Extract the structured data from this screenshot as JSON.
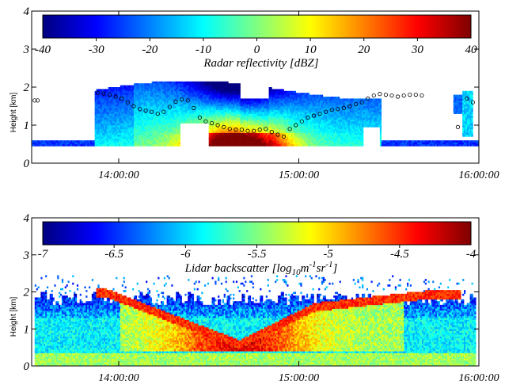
{
  "chart_data": [
    {
      "type": "heatmap",
      "title": "",
      "xlabel": "",
      "ylabel": "Height [km]",
      "xticks": [
        "14:00:00",
        "15:00:00",
        "16:00:00"
      ],
      "xlim": [
        "13:31:00",
        "16:00:00"
      ],
      "yticks": [
        0,
        1,
        2,
        3,
        4
      ],
      "ylim": [
        0,
        4
      ],
      "colorbar": {
        "label": "Radar reflectivity [dBZ]",
        "ticks": [
          "-40",
          "-30",
          "-20",
          "-10",
          "0",
          "10",
          "20",
          "30",
          "40"
        ],
        "range": [
          -40,
          40
        ],
        "colormap": "jet"
      },
      "overlay_points": {
        "marker": "open-circle",
        "color": "#000000",
        "description_values": [
          [
            "13:32",
            1.65
          ],
          [
            "13:33",
            1.65
          ],
          [
            "13:53",
            1.85
          ],
          [
            "13:55",
            1.83
          ],
          [
            "13:57",
            1.8
          ],
          [
            "13:59",
            1.75
          ],
          [
            "14:01",
            1.7
          ],
          [
            "14:03",
            1.6
          ],
          [
            "14:05",
            1.5
          ],
          [
            "14:07",
            1.42
          ],
          [
            "14:09",
            1.38
          ],
          [
            "14:11",
            1.35
          ],
          [
            "14:13",
            1.3
          ],
          [
            "14:15",
            1.35
          ],
          [
            "14:17",
            1.48
          ],
          [
            "14:19",
            1.62
          ],
          [
            "14:21",
            1.68
          ],
          [
            "14:23",
            1.65
          ],
          [
            "14:25",
            1.45
          ],
          [
            "14:27",
            1.2
          ],
          [
            "14:29",
            1.1
          ],
          [
            "14:31",
            1.05
          ],
          [
            "14:33",
            1.0
          ],
          [
            "14:35",
            0.95
          ],
          [
            "14:37",
            0.9
          ],
          [
            "14:39",
            0.88
          ],
          [
            "14:41",
            0.88
          ],
          [
            "14:43",
            0.85
          ],
          [
            "14:45",
            0.85
          ],
          [
            "14:47",
            0.88
          ],
          [
            "14:49",
            0.9
          ],
          [
            "14:51",
            0.82
          ],
          [
            "14:53",
            0.75
          ],
          [
            "14:55",
            0.7
          ],
          [
            "14:57",
            0.9
          ],
          [
            "14:59",
            1.0
          ],
          [
            "15:01",
            1.1
          ],
          [
            "15:03",
            1.2
          ],
          [
            "15:05",
            1.25
          ],
          [
            "15:07",
            1.3
          ],
          [
            "15:09",
            1.35
          ],
          [
            "15:11",
            1.4
          ],
          [
            "15:13",
            1.42
          ],
          [
            "15:15",
            1.45
          ],
          [
            "15:17",
            1.5
          ],
          [
            "15:19",
            1.55
          ],
          [
            "15:21",
            1.6
          ],
          [
            "15:23",
            1.7
          ],
          [
            "15:25",
            1.78
          ],
          [
            "15:27",
            1.82
          ],
          [
            "15:29",
            1.8
          ],
          [
            "15:31",
            1.78
          ],
          [
            "15:33",
            1.75
          ],
          [
            "15:35",
            1.78
          ],
          [
            "15:37",
            1.8
          ],
          [
            "15:39",
            1.8
          ],
          [
            "15:41",
            1.78
          ],
          [
            "15:53",
            0.95
          ],
          [
            "15:56",
            1.7
          ],
          [
            "15:58",
            1.6
          ]
        ]
      }
    },
    {
      "type": "heatmap",
      "title": "",
      "xlabel": "",
      "ylabel": "Height [km]",
      "xticks": [
        "14:00:00",
        "15:00:00",
        "16:00:00"
      ],
      "xlim": [
        "13:31:00",
        "16:00:00"
      ],
      "yticks": [
        0,
        1,
        2,
        3,
        4
      ],
      "ylim": [
        0,
        4
      ],
      "colorbar": {
        "label_main": "Lidar backscatter [log",
        "label_sub1": "10",
        "label_m": "m",
        "label_sup1": "-1",
        "label_sr": "sr",
        "label_sup2": "-1",
        "label_end": "]",
        "ticks": [
          "-7",
          "-6.5",
          "-6",
          "-5.5",
          "-5",
          "-4.5",
          "-4"
        ],
        "range": [
          -7,
          -4
        ],
        "colormap": "jet"
      }
    }
  ]
}
